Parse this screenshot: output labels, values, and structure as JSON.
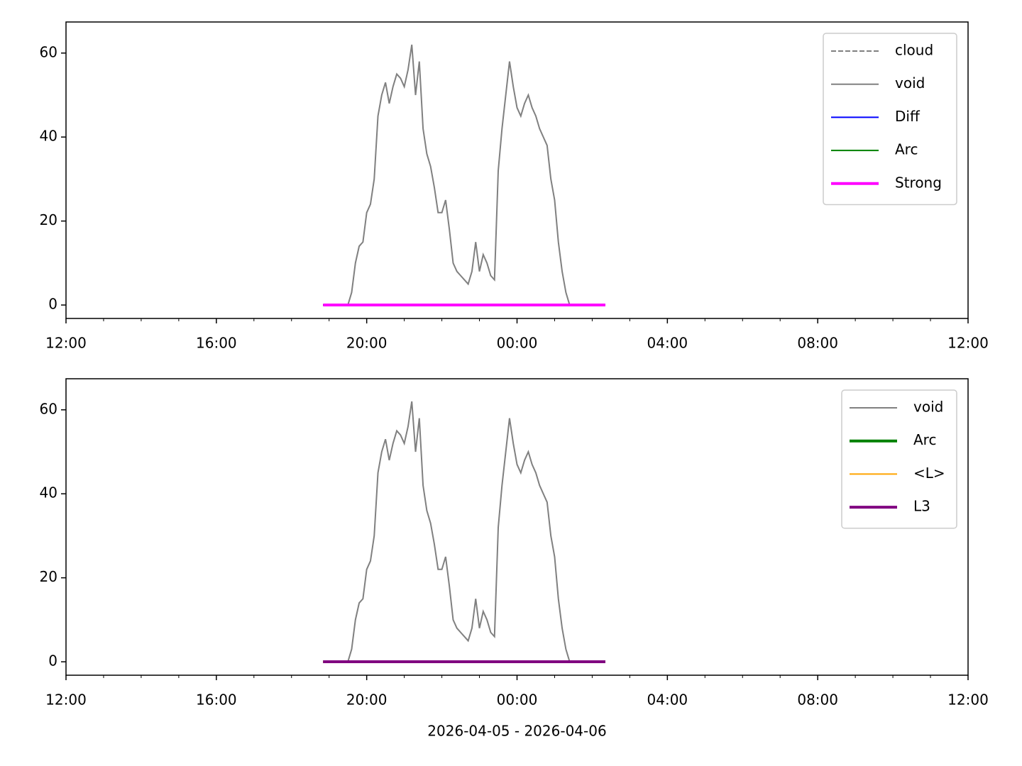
{
  "chart_data": [
    {
      "type": "line",
      "legend": "upper right",
      "xlim": [
        0,
        24
      ],
      "xticks": [
        {
          "value": 0,
          "label": "12:00"
        },
        {
          "value": 4,
          "label": "16:00"
        },
        {
          "value": 8,
          "label": "20:00"
        },
        {
          "value": 12,
          "label": "00:00"
        },
        {
          "value": 16,
          "label": "04:00"
        },
        {
          "value": 20,
          "label": "08:00"
        },
        {
          "value": 24,
          "label": "12:00"
        }
      ],
      "xminorticks": [
        1,
        2,
        3,
        5,
        6,
        7,
        9,
        10,
        11,
        13,
        14,
        15,
        17,
        18,
        19,
        21,
        22,
        23
      ],
      "ylim": [
        -3.2,
        67.4
      ],
      "yticks": [
        0,
        20,
        40,
        60
      ],
      "series": [
        {
          "name": "cloud",
          "color": "#808080",
          "linestyle": "dashed",
          "linewidth": 2,
          "x": [
            6.84,
            14.35
          ],
          "values": [
            0,
            0
          ]
        },
        {
          "name": "void",
          "color": "#808080",
          "linestyle": "solid",
          "linewidth": 2,
          "x": [
            7.5,
            7.6,
            7.7,
            7.8,
            7.9,
            8.0,
            8.1,
            8.2,
            8.3,
            8.4,
            8.5,
            8.6,
            8.7,
            8.8,
            8.9,
            9.0,
            9.1,
            9.2,
            9.3,
            9.4,
            9.5,
            9.6,
            9.7,
            9.8,
            9.9,
            10.0,
            10.1,
            10.2,
            10.3,
            10.4,
            10.5,
            10.6,
            10.7,
            10.8,
            10.9,
            11.0,
            11.1,
            11.2,
            11.3,
            11.4,
            11.5,
            11.6,
            11.7,
            11.8,
            11.9,
            12.0,
            12.1,
            12.2,
            12.3,
            12.4,
            12.5,
            12.6,
            12.7,
            12.8,
            12.9,
            13.0,
            13.1,
            13.2,
            13.3,
            13.4
          ],
          "values": [
            0,
            3,
            10,
            14,
            15,
            22,
            24,
            30,
            45,
            50,
            53,
            48,
            52,
            55,
            54,
            52,
            56,
            62,
            50,
            58,
            42,
            36,
            33,
            28,
            22,
            22,
            25,
            18,
            10,
            8,
            7,
            6,
            5,
            8,
            15,
            8,
            12,
            10,
            7,
            6,
            32,
            42,
            50,
            58,
            52,
            47,
            45,
            48,
            50,
            47,
            45,
            42,
            40,
            38,
            30,
            25,
            15,
            8,
            3,
            0
          ]
        },
        {
          "name": "Diff",
          "color": "#0000ff",
          "linestyle": "solid",
          "linewidth": 2,
          "x": [
            6.84,
            14.35
          ],
          "values": [
            0,
            0
          ]
        },
        {
          "name": "Arc",
          "color": "#008000",
          "linestyle": "solid",
          "linewidth": 2,
          "x": [
            6.84,
            14.35
          ],
          "values": [
            0,
            0
          ]
        },
        {
          "name": "Strong",
          "color": "#ff00ff",
          "linestyle": "solid",
          "linewidth": 4,
          "x": [
            6.84,
            14.35
          ],
          "values": [
            0,
            0
          ]
        }
      ]
    },
    {
      "type": "line",
      "legend": "upper right",
      "xlabel": "2026-04-05 - 2026-04-06",
      "xlim": [
        0,
        24
      ],
      "xticks": [
        {
          "value": 0,
          "label": "12:00"
        },
        {
          "value": 4,
          "label": "16:00"
        },
        {
          "value": 8,
          "label": "20:00"
        },
        {
          "value": 12,
          "label": "00:00"
        },
        {
          "value": 16,
          "label": "04:00"
        },
        {
          "value": 20,
          "label": "08:00"
        },
        {
          "value": 24,
          "label": "12:00"
        }
      ],
      "xminorticks": [
        1,
        2,
        3,
        5,
        6,
        7,
        9,
        10,
        11,
        13,
        14,
        15,
        17,
        18,
        19,
        21,
        22,
        23
      ],
      "ylim": [
        -3.2,
        67.4
      ],
      "yticks": [
        0,
        20,
        40,
        60
      ],
      "series": [
        {
          "name": "void",
          "color": "#808080",
          "linestyle": "solid",
          "linewidth": 2,
          "x": [
            7.5,
            7.6,
            7.7,
            7.8,
            7.9,
            8.0,
            8.1,
            8.2,
            8.3,
            8.4,
            8.5,
            8.6,
            8.7,
            8.8,
            8.9,
            9.0,
            9.1,
            9.2,
            9.3,
            9.4,
            9.5,
            9.6,
            9.7,
            9.8,
            9.9,
            10.0,
            10.1,
            10.2,
            10.3,
            10.4,
            10.5,
            10.6,
            10.7,
            10.8,
            10.9,
            11.0,
            11.1,
            11.2,
            11.3,
            11.4,
            11.5,
            11.6,
            11.7,
            11.8,
            11.9,
            12.0,
            12.1,
            12.2,
            12.3,
            12.4,
            12.5,
            12.6,
            12.7,
            12.8,
            12.9,
            13.0,
            13.1,
            13.2,
            13.3,
            13.4
          ],
          "values": [
            0,
            3,
            10,
            14,
            15,
            22,
            24,
            30,
            45,
            50,
            53,
            48,
            52,
            55,
            54,
            52,
            56,
            62,
            50,
            58,
            42,
            36,
            33,
            28,
            22,
            22,
            25,
            18,
            10,
            8,
            7,
            6,
            5,
            8,
            15,
            8,
            12,
            10,
            7,
            6,
            32,
            42,
            50,
            58,
            52,
            47,
            45,
            48,
            50,
            47,
            45,
            42,
            40,
            38,
            30,
            25,
            15,
            8,
            3,
            0
          ]
        },
        {
          "name": "Arc",
          "color": "#008000",
          "linestyle": "solid",
          "linewidth": 4,
          "x": [
            6.84,
            14.35
          ],
          "values": [
            0,
            0
          ]
        },
        {
          "name": "<L>",
          "color": "#ffa500",
          "linestyle": "solid",
          "linewidth": 2,
          "x": [
            6.84,
            14.35
          ],
          "values": [
            0,
            0
          ]
        },
        {
          "name": "L3",
          "color": "#800080",
          "linestyle": "solid",
          "linewidth": 4,
          "x": [
            6.84,
            14.35
          ],
          "values": [
            0,
            0
          ]
        }
      ]
    }
  ]
}
